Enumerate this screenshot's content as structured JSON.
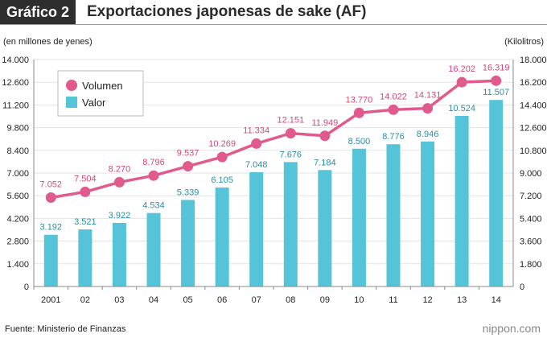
{
  "header": {
    "badge": "Gráfico 2",
    "title": "Exportaciones japonesas de sake (AF)"
  },
  "footer": {
    "source": "Fuente: Ministerio de Finanzas",
    "brand": "nippon.com"
  },
  "colors": {
    "volume": "#e05a8d",
    "value": "#56c4d8",
    "axis": "#888888",
    "grid": "#e3e3e3"
  },
  "chart_data": {
    "type": "bar",
    "categories": [
      "2001",
      "02",
      "03",
      "04",
      "05",
      "06",
      "07",
      "08",
      "09",
      "10",
      "11",
      "12",
      "13",
      "14"
    ],
    "left_axis_label": "(en millones de yenes)",
    "right_axis_label": "(Kilolitros)",
    "left_ticks": [
      "0",
      "1.400",
      "2.800",
      "4.200",
      "5.600",
      "7.000",
      "8.400",
      "9.800",
      "11.200",
      "12.600",
      "14.000"
    ],
    "right_ticks": [
      "0",
      "1.800",
      "3.600",
      "5.400",
      "7.200",
      "9.000",
      "10.800",
      "12.600",
      "14.400",
      "16.200",
      "18.000"
    ],
    "ylim_left": [
      0,
      14000
    ],
    "ylim_right": [
      0,
      18000
    ],
    "legend_position": "top-left",
    "series": [
      {
        "name": "Volumen",
        "type": "line",
        "axis": "right",
        "values": [
          7052,
          7504,
          8270,
          8796,
          9537,
          10269,
          11334,
          12151,
          11949,
          13770,
          14022,
          14131,
          16202,
          16319
        ],
        "labels": [
          "7.052",
          "7.504",
          "8.270",
          "8.796",
          "9.537",
          "10.269",
          "11.334",
          "12.151",
          "11.949",
          "13.770",
          "14.022",
          "14.131",
          "16.202",
          "16.319"
        ]
      },
      {
        "name": "Valor",
        "type": "bar",
        "axis": "left",
        "values": [
          3192,
          3521,
          3922,
          4534,
          5339,
          6105,
          7048,
          7676,
          7184,
          8500,
          8776,
          8946,
          10524,
          11507
        ],
        "labels": [
          "3.192",
          "3.521",
          "3.922",
          "4.534",
          "5.339",
          "6.105",
          "7.048",
          "7.676",
          "7.184",
          "8.500",
          "8.776",
          "8.946",
          "10.524",
          "11.507"
        ]
      }
    ]
  }
}
